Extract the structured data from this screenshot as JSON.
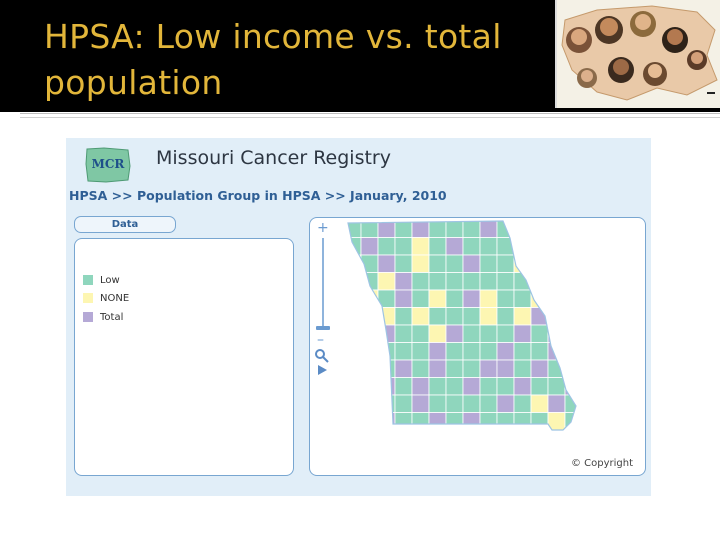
{
  "slide": {
    "title_line1": "HPSA:  Low income vs. total",
    "title_line2": "population",
    "title_color": "#e2b63a"
  },
  "app": {
    "logo_text": "MCR",
    "title": "Missouri Cancer Registry",
    "breadcrumb": "HPSA >> Population Group in HPSA >>  January, 2010",
    "data_tab": "Data",
    "copyright": "© Copyright"
  },
  "legend": [
    {
      "label": "Low",
      "color": "#8fd6bd"
    },
    {
      "label": "NONE",
      "color": "#fdf6b2"
    },
    {
      "label": "Total",
      "color": "#b5a9d6"
    }
  ],
  "map": {
    "region": "Missouri counties",
    "zoom_controls": [
      "plus",
      "minus",
      "search",
      "play"
    ]
  }
}
